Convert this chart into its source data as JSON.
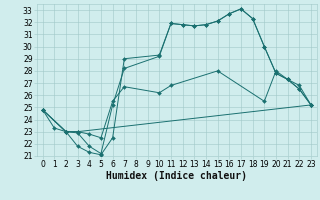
{
  "xlabel": "Humidex (Indice chaleur)",
  "xlim": [
    -0.5,
    23.5
  ],
  "ylim": [
    21,
    33.5
  ],
  "yticks": [
    21,
    22,
    23,
    24,
    25,
    26,
    27,
    28,
    29,
    30,
    31,
    32,
    33
  ],
  "xticks": [
    0,
    1,
    2,
    3,
    4,
    5,
    6,
    7,
    8,
    9,
    10,
    11,
    12,
    13,
    14,
    15,
    16,
    17,
    18,
    19,
    20,
    21,
    22,
    23
  ],
  "bg_color": "#d0eded",
  "grid_color": "#a0c8c8",
  "line_color": "#1a7070",
  "series": [
    {
      "x": [
        0,
        1,
        2,
        3,
        4,
        5,
        6,
        7,
        10,
        11,
        12,
        13,
        14,
        15,
        16,
        17,
        18,
        19,
        20,
        21,
        22,
        23
      ],
      "y": [
        24.8,
        23.3,
        23.0,
        21.8,
        21.3,
        21.1,
        22.5,
        29.0,
        29.3,
        31.9,
        31.8,
        31.7,
        31.8,
        32.1,
        32.7,
        33.1,
        32.3,
        30.0,
        27.8,
        27.3,
        26.5,
        25.2
      ]
    },
    {
      "x": [
        0,
        2,
        3,
        4,
        5,
        6,
        7,
        10,
        11,
        12,
        13,
        14,
        15,
        16,
        17,
        18,
        19,
        20,
        21,
        22,
        23
      ],
      "y": [
        24.8,
        23.0,
        22.9,
        21.8,
        21.2,
        25.2,
        28.2,
        29.2,
        31.9,
        31.8,
        31.7,
        31.8,
        32.1,
        32.7,
        33.1,
        32.3,
        30.0,
        27.8,
        27.3,
        26.5,
        25.2
      ]
    },
    {
      "x": [
        0,
        2,
        3,
        4,
        5,
        6,
        7,
        10,
        11,
        15,
        19,
        20,
        21,
        22,
        23
      ],
      "y": [
        24.8,
        23.0,
        23.0,
        22.8,
        22.5,
        25.5,
        26.7,
        26.2,
        26.8,
        28.0,
        25.5,
        28.0,
        27.3,
        26.8,
        25.2
      ]
    },
    {
      "x": [
        0,
        2,
        3,
        23
      ],
      "y": [
        24.8,
        23.0,
        23.0,
        25.2
      ]
    }
  ],
  "tick_fontsize": 5.5,
  "xlabel_fontsize": 7,
  "linewidth": 0.7,
  "markersize": 2.0
}
